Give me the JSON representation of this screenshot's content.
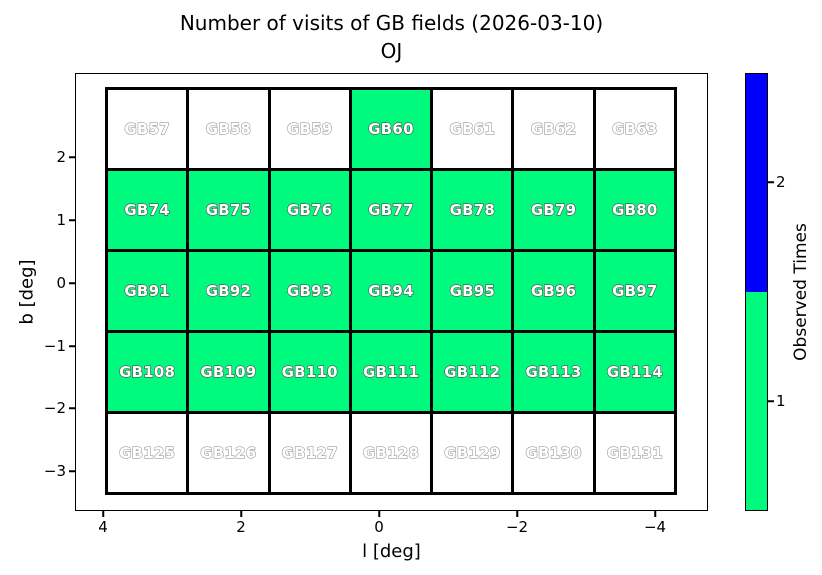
{
  "title": {
    "line1": "Number of visits of GB fields (2026-03-10)",
    "line2": "OJ"
  },
  "axes": {
    "xlabel": "l [deg]",
    "ylabel": "b [deg]",
    "x_tick_labels": [
      "4",
      "2",
      "0",
      "−2",
      "−4"
    ],
    "y_tick_labels": [
      "2",
      "1",
      "0",
      "−1",
      "−2",
      "−3"
    ]
  },
  "colorbar": {
    "label": "Observed Times",
    "tick_labels": [
      "2",
      "1"
    ],
    "blue_hex": "#0000FF",
    "green_hex": "#00FA7E",
    "unobserved_hex": "#FFFFFF"
  },
  "chart_data": {
    "type": "heatmap",
    "title": "Number of visits of GB fields (2026-03-10)",
    "subtitle": "OJ",
    "xlabel": "l [deg]",
    "ylabel": "b [deg]",
    "x_ticks": [
      4,
      2,
      0,
      -2,
      -4
    ],
    "y_ticks": [
      2,
      1,
      0,
      -1,
      -2,
      -3
    ],
    "x_axis_reversed": true,
    "xlim": [
      4.4,
      -4.7
    ],
    "ylim": [
      -3.65,
      3.35
    ],
    "grid_on": false,
    "grid_cols_l_centers": [
      3.4,
      2.2,
      1.0,
      -0.15,
      -1.3,
      -2.5,
      -3.7
    ],
    "grid_rows_b_centers": [
      2.5,
      1.2,
      -0.15,
      -1.45,
      -2.75
    ],
    "cell_size_deg": {
      "width_l": 1.18,
      "height_b": 1.3
    },
    "field_labels": [
      [
        "GB57",
        "GB58",
        "GB59",
        "GB60",
        "GB61",
        "GB62",
        "GB63"
      ],
      [
        "GB74",
        "GB75",
        "GB76",
        "GB77",
        "GB78",
        "GB79",
        "GB80"
      ],
      [
        "GB91",
        "GB92",
        "GB93",
        "GB94",
        "GB95",
        "GB96",
        "GB97"
      ],
      [
        "GB108",
        "GB109",
        "GB110",
        "GB111",
        "GB112",
        "GB113",
        "GB114"
      ],
      [
        "GB125",
        "GB126",
        "GB127",
        "GB128",
        "GB129",
        "GB130",
        "GB131"
      ]
    ],
    "observed_times": [
      [
        0,
        0,
        0,
        1,
        0,
        0,
        0
      ],
      [
        1,
        1,
        1,
        1,
        1,
        1,
        1
      ],
      [
        1,
        1,
        1,
        1,
        1,
        1,
        1
      ],
      [
        1,
        1,
        1,
        1,
        1,
        1,
        1
      ],
      [
        0,
        0,
        0,
        0,
        0,
        0,
        0
      ]
    ],
    "legend": {
      "label": "Observed Times",
      "position": "right-colorbar",
      "levels": [
        {
          "value": 1,
          "color": "#00FA7E"
        },
        {
          "value": 2,
          "color": "#0000FF"
        }
      ],
      "unobserved_color": "#FFFFFF"
    }
  }
}
